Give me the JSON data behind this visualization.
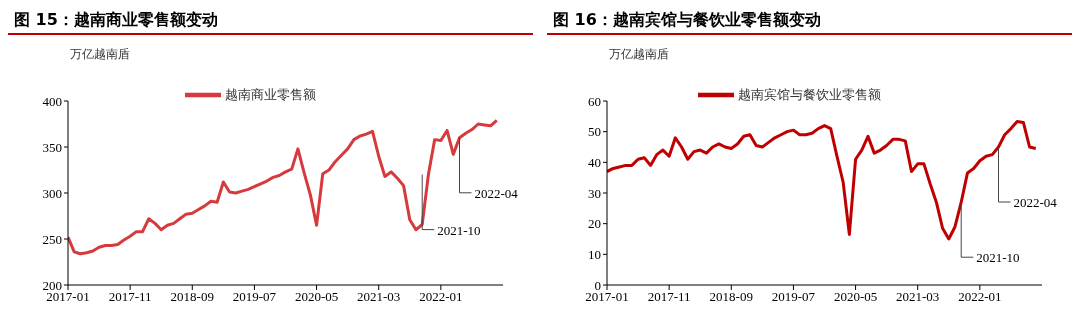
{
  "chart_data": [
    {
      "type": "line",
      "title": "图 15：越南商业零售额变动",
      "ylabel": "万亿越南盾",
      "legend": "top",
      "x": [
        "2017-01",
        "2017-02",
        "2017-03",
        "2017-04",
        "2017-05",
        "2017-06",
        "2017-07",
        "2017-08",
        "2017-09",
        "2017-10",
        "2017-11",
        "2017-12",
        "2018-01",
        "2018-02",
        "2018-03",
        "2018-04",
        "2018-05",
        "2018-06",
        "2018-07",
        "2018-08",
        "2018-09",
        "2018-10",
        "2018-11",
        "2018-12",
        "2019-01",
        "2019-02",
        "2019-03",
        "2019-04",
        "2019-05",
        "2019-06",
        "2019-07",
        "2019-08",
        "2019-09",
        "2019-10",
        "2019-11",
        "2019-12",
        "2020-01",
        "2020-02",
        "2020-03",
        "2020-04",
        "2020-05",
        "2020-06",
        "2020-07",
        "2020-08",
        "2020-09",
        "2020-10",
        "2020-11",
        "2020-12",
        "2021-01",
        "2021-02",
        "2021-03",
        "2021-04",
        "2021-05",
        "2021-06",
        "2021-07",
        "2021-08",
        "2021-09",
        "2021-10",
        "2021-11",
        "2021-12",
        "2022-01",
        "2022-02",
        "2022-03",
        "2022-04",
        "2022-05",
        "2022-06",
        "2022-07",
        "2022-08",
        "2022-09",
        "2022-10"
      ],
      "series": [
        {
          "name": "越南商业零售额",
          "color": "#d63a3c",
          "values": [
            252,
            236,
            234,
            235,
            237,
            241,
            243,
            243,
            244,
            249,
            253,
            258,
            258,
            272,
            267,
            260,
            265,
            267,
            272,
            277,
            278,
            282,
            286,
            291,
            290,
            312,
            301,
            300,
            302,
            304,
            307,
            310,
            313,
            317,
            319,
            323,
            326,
            348,
            322,
            298,
            265,
            321,
            325,
            334,
            341,
            348,
            358,
            362,
            364,
            367,
            340,
            318,
            323,
            316,
            308,
            271,
            260,
            266,
            320,
            358,
            357,
            368,
            342,
            360,
            365,
            369,
            375,
            374,
            373,
            379
          ]
        }
      ],
      "xlim": [
        "2017-01",
        "2022-11"
      ],
      "xticks": [
        "2017-01",
        "2017-11",
        "2018-09",
        "2019-07",
        "2020-05",
        "2021-03",
        "2022-01"
      ],
      "ylim": [
        200,
        400
      ],
      "yticks": [
        200,
        250,
        300,
        350,
        400
      ],
      "grid": false,
      "annotations": [
        {
          "text": "2021-10",
          "x": "2021-10",
          "y": 320
        },
        {
          "text": "2022-04",
          "x": "2022-04",
          "y": 360
        }
      ]
    },
    {
      "type": "line",
      "title": "图 16：越南宾馆与餐饮业零售额变动",
      "ylabel": "万亿越南盾",
      "legend": "top",
      "x": [
        "2017-01",
        "2017-02",
        "2017-03",
        "2017-04",
        "2017-05",
        "2017-06",
        "2017-07",
        "2017-08",
        "2017-09",
        "2017-10",
        "2017-11",
        "2017-12",
        "2018-01",
        "2018-02",
        "2018-03",
        "2018-04",
        "2018-05",
        "2018-06",
        "2018-07",
        "2018-08",
        "2018-09",
        "2018-10",
        "2018-11",
        "2018-12",
        "2019-01",
        "2019-02",
        "2019-03",
        "2019-04",
        "2019-05",
        "2019-06",
        "2019-07",
        "2019-08",
        "2019-09",
        "2019-10",
        "2019-11",
        "2019-12",
        "2020-01",
        "2020-02",
        "2020-03",
        "2020-04",
        "2020-05",
        "2020-06",
        "2020-07",
        "2020-08",
        "2020-09",
        "2020-10",
        "2020-11",
        "2020-12",
        "2021-01",
        "2021-02",
        "2021-03",
        "2021-04",
        "2021-05",
        "2021-06",
        "2021-07",
        "2021-08",
        "2021-09",
        "2021-10",
        "2021-11",
        "2021-12",
        "2022-01",
        "2022-02",
        "2022-03",
        "2022-04",
        "2022-05",
        "2022-06",
        "2022-07",
        "2022-08",
        "2022-09",
        "2022-10"
      ],
      "series": [
        {
          "name": "越南宾馆与餐饮业零售额",
          "color": "#c00000",
          "values": [
            37,
            38,
            38.5,
            39,
            39,
            41,
            41.5,
            39,
            42.5,
            44,
            42,
            48,
            45,
            41,
            43.5,
            44,
            43,
            45,
            46,
            45,
            44.5,
            46,
            48.5,
            49,
            45.5,
            45,
            46.5,
            48,
            49,
            50,
            50.5,
            49,
            49,
            49.5,
            51,
            52,
            51,
            42,
            33.5,
            16.5,
            41,
            44,
            48.5,
            43,
            44,
            45.5,
            47.5,
            47.5,
            47,
            37,
            39.5,
            39.5,
            33,
            27,
            18.5,
            15,
            19,
            27,
            36.5,
            38,
            40.5,
            42,
            42.5,
            45,
            49,
            51,
            53.3,
            53,
            45,
            44.5
          ]
        }
      ],
      "xlim": [
        "2017-01",
        "2022-11"
      ],
      "xticks": [
        "2017-01",
        "2017-11",
        "2018-09",
        "2019-07",
        "2020-05",
        "2021-03",
        "2022-01"
      ],
      "ylim": [
        0,
        60
      ],
      "yticks": [
        0,
        10,
        20,
        30,
        40,
        50,
        60
      ],
      "grid": false,
      "annotations": [
        {
          "text": "2021-10",
          "x": "2021-10",
          "y": 27
        },
        {
          "text": "2022-04",
          "x": "2022-04",
          "y": 45
        }
      ]
    }
  ]
}
